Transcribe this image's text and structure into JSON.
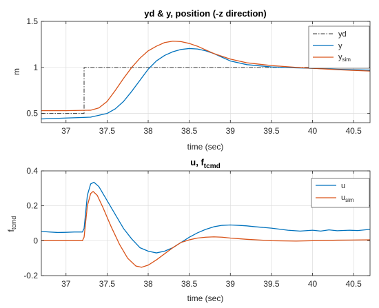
{
  "chart_data": [
    {
      "type": "line",
      "title": "yd & y, position (-z direction)",
      "xlabel": "time (sec)",
      "ylabel": "m",
      "xlim": [
        36.7,
        40.7
      ],
      "ylim": [
        0.4,
        1.5
      ],
      "xticks": [
        37,
        37.5,
        38,
        38.5,
        39,
        39.5,
        40,
        40.5
      ],
      "yticks": [
        0.5,
        1,
        1.5
      ],
      "xtick_labels": [
        "37",
        "37.5",
        "38",
        "38.5",
        "39",
        "39.5",
        "40",
        "40.5"
      ],
      "ytick_labels": [
        "0.5",
        "1",
        "1.5"
      ],
      "grid": true,
      "legend_position": "top-right",
      "series": [
        {
          "name": "yd",
          "color": "#333333",
          "dash": "dashdot",
          "points": [
            [
              36.7,
              0.5
            ],
            [
              37.22,
              0.5
            ],
            [
              37.22,
              1.0
            ],
            [
              40.7,
              1.0
            ]
          ]
        },
        {
          "name": "y",
          "color": "#0072BD",
          "points": [
            [
              36.7,
              0.44
            ],
            [
              37.0,
              0.45
            ],
            [
              37.3,
              0.46
            ],
            [
              37.5,
              0.5
            ],
            [
              37.6,
              0.55
            ],
            [
              37.7,
              0.63
            ],
            [
              37.8,
              0.74
            ],
            [
              37.9,
              0.86
            ],
            [
              38.0,
              0.98
            ],
            [
              38.1,
              1.07
            ],
            [
              38.2,
              1.13
            ],
            [
              38.3,
              1.17
            ],
            [
              38.4,
              1.195
            ],
            [
              38.5,
              1.205
            ],
            [
              38.6,
              1.2
            ],
            [
              38.7,
              1.18
            ],
            [
              38.8,
              1.15
            ],
            [
              38.9,
              1.11
            ],
            [
              39.0,
              1.07
            ],
            [
              39.2,
              1.03
            ],
            [
              39.5,
              1.005
            ],
            [
              39.8,
              0.995
            ],
            [
              40.0,
              0.99
            ],
            [
              40.3,
              0.98
            ],
            [
              40.7,
              0.97
            ]
          ]
        },
        {
          "name": "y_sim",
          "label_main": "y",
          "label_sub": "sim",
          "color": "#D95319",
          "points": [
            [
              36.7,
              0.53
            ],
            [
              37.0,
              0.53
            ],
            [
              37.3,
              0.535
            ],
            [
              37.4,
              0.56
            ],
            [
              37.5,
              0.63
            ],
            [
              37.6,
              0.75
            ],
            [
              37.7,
              0.88
            ],
            [
              37.8,
              1.0
            ],
            [
              37.9,
              1.1
            ],
            [
              38.0,
              1.18
            ],
            [
              38.1,
              1.23
            ],
            [
              38.2,
              1.27
            ],
            [
              38.3,
              1.285
            ],
            [
              38.4,
              1.28
            ],
            [
              38.5,
              1.26
            ],
            [
              38.6,
              1.23
            ],
            [
              38.7,
              1.19
            ],
            [
              38.8,
              1.15
            ],
            [
              39.0,
              1.09
            ],
            [
              39.2,
              1.05
            ],
            [
              39.5,
              1.02
            ],
            [
              39.8,
              1.0
            ],
            [
              40.0,
              0.99
            ],
            [
              40.3,
              0.975
            ],
            [
              40.7,
              0.96
            ]
          ]
        }
      ]
    },
    {
      "type": "line",
      "title_main": "u, f",
      "title_sub": "tcmd",
      "xlabel": "time (sec)",
      "ylabel_main": "f",
      "ylabel_sub": "tcmd",
      "xlim": [
        36.7,
        40.7
      ],
      "ylim": [
        -0.2,
        0.4
      ],
      "xticks": [
        37,
        37.5,
        38,
        38.5,
        39,
        39.5,
        40,
        40.5
      ],
      "yticks": [
        -0.2,
        0,
        0.2,
        0.4
      ],
      "xtick_labels": [
        "37",
        "37.5",
        "38",
        "38.5",
        "39",
        "39.5",
        "40",
        "40.5"
      ],
      "ytick_labels": [
        "-0.2",
        "0",
        "0.2",
        "0.4"
      ],
      "grid": true,
      "legend_position": "top-right",
      "series": [
        {
          "name": "u",
          "color": "#0072BD",
          "points": [
            [
              36.7,
              0.053
            ],
            [
              36.8,
              0.05
            ],
            [
              36.9,
              0.047
            ],
            [
              37.0,
              0.048
            ],
            [
              37.1,
              0.05
            ],
            [
              37.2,
              0.05
            ],
            [
              37.22,
              0.07
            ],
            [
              37.26,
              0.26
            ],
            [
              37.3,
              0.325
            ],
            [
              37.34,
              0.335
            ],
            [
              37.4,
              0.31
            ],
            [
              37.5,
              0.23
            ],
            [
              37.6,
              0.15
            ],
            [
              37.7,
              0.07
            ],
            [
              37.8,
              0.01
            ],
            [
              37.9,
              -0.04
            ],
            [
              38.0,
              -0.06
            ],
            [
              38.1,
              -0.07
            ],
            [
              38.2,
              -0.06
            ],
            [
              38.3,
              -0.04
            ],
            [
              38.4,
              -0.01
            ],
            [
              38.5,
              0.02
            ],
            [
              38.6,
              0.045
            ],
            [
              38.7,
              0.065
            ],
            [
              38.8,
              0.08
            ],
            [
              38.9,
              0.088
            ],
            [
              39.0,
              0.09
            ],
            [
              39.1,
              0.088
            ],
            [
              39.2,
              0.085
            ],
            [
              39.3,
              0.08
            ],
            [
              39.5,
              0.072
            ],
            [
              39.7,
              0.06
            ],
            [
              39.85,
              0.055
            ],
            [
              40.0,
              0.06
            ],
            [
              40.1,
              0.055
            ],
            [
              40.2,
              0.062
            ],
            [
              40.3,
              0.057
            ],
            [
              40.45,
              0.06
            ],
            [
              40.55,
              0.058
            ],
            [
              40.7,
              0.065
            ]
          ]
        },
        {
          "name": "u_sim",
          "label_main": "u",
          "label_sub": "sim",
          "color": "#D95319",
          "points": [
            [
              36.7,
              0.0
            ],
            [
              37.0,
              0.0
            ],
            [
              37.2,
              0.0
            ],
            [
              37.22,
              0.02
            ],
            [
              37.26,
              0.2
            ],
            [
              37.3,
              0.27
            ],
            [
              37.33,
              0.282
            ],
            [
              37.38,
              0.26
            ],
            [
              37.45,
              0.19
            ],
            [
              37.55,
              0.08
            ],
            [
              37.65,
              -0.02
            ],
            [
              37.75,
              -0.1
            ],
            [
              37.85,
              -0.145
            ],
            [
              37.92,
              -0.152
            ],
            [
              38.0,
              -0.14
            ],
            [
              38.1,
              -0.11
            ],
            [
              38.2,
              -0.075
            ],
            [
              38.3,
              -0.04
            ],
            [
              38.4,
              -0.01
            ],
            [
              38.5,
              0.005
            ],
            [
              38.6,
              0.015
            ],
            [
              38.7,
              0.02
            ],
            [
              38.8,
              0.022
            ],
            [
              38.9,
              0.02
            ],
            [
              39.0,
              0.015
            ],
            [
              39.2,
              0.008
            ],
            [
              39.5,
              0.0
            ],
            [
              39.8,
              -0.002
            ],
            [
              40.0,
              0.0
            ],
            [
              40.3,
              0.003
            ],
            [
              40.7,
              0.005
            ]
          ]
        }
      ]
    }
  ]
}
